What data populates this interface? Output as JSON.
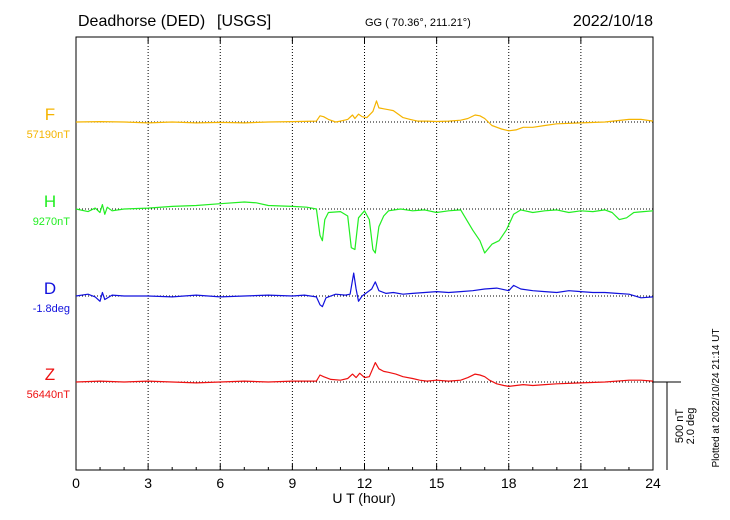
{
  "header": {
    "station": "Deadhorse (DED)",
    "network": "[USGS]",
    "coords": "GG ( 70.36°, 211.21°)",
    "date": "2022/10/18"
  },
  "footer": {
    "plotted": "Plotted at 2022/10/24 21:14 UT"
  },
  "chart_data": {
    "type": "line",
    "xlabel": "U T (hour)",
    "xlim": [
      0,
      24
    ],
    "xticks": [
      "0",
      "3",
      "6",
      "9",
      "12",
      "15",
      "18",
      "21",
      "24"
    ],
    "grid": true,
    "scale_bar": {
      "value": "500 nT",
      "deg": "2.0 deg"
    },
    "panels": [
      {
        "name": "F",
        "baseline": "57190nT",
        "color": "#f5b400",
        "points": [
          [
            0,
            0
          ],
          [
            1,
            2
          ],
          [
            2,
            0
          ],
          [
            3,
            -5
          ],
          [
            4,
            0
          ],
          [
            5,
            -5
          ],
          [
            6,
            -2
          ],
          [
            7,
            -5
          ],
          [
            8,
            0
          ],
          [
            9,
            2
          ],
          [
            10,
            5
          ],
          [
            10.15,
            35
          ],
          [
            10.3,
            30
          ],
          [
            10.5,
            15
          ],
          [
            10.8,
            0
          ],
          [
            11,
            5
          ],
          [
            11.3,
            15
          ],
          [
            11.5,
            40
          ],
          [
            11.6,
            20
          ],
          [
            11.75,
            45
          ],
          [
            11.9,
            30
          ],
          [
            12.1,
            25
          ],
          [
            12.35,
            60
          ],
          [
            12.5,
            120
          ],
          [
            12.6,
            80
          ],
          [
            12.8,
            75
          ],
          [
            13.0,
            70
          ],
          [
            13.2,
            65
          ],
          [
            13.4,
            45
          ],
          [
            13.6,
            25
          ],
          [
            13.9,
            15
          ],
          [
            14.2,
            5
          ],
          [
            14.6,
            5
          ],
          [
            15,
            3
          ],
          [
            15.5,
            5
          ],
          [
            16.0,
            10
          ],
          [
            16.3,
            20
          ],
          [
            16.6,
            40
          ],
          [
            16.8,
            35
          ],
          [
            17.0,
            20
          ],
          [
            17.3,
            -20
          ],
          [
            17.7,
            -40
          ],
          [
            18.0,
            -50
          ],
          [
            18.3,
            -45
          ],
          [
            18.6,
            -30
          ],
          [
            19,
            -30
          ],
          [
            19.5,
            -20
          ],
          [
            20,
            -10
          ],
          [
            21,
            -5
          ],
          [
            22,
            0
          ],
          [
            23,
            15
          ],
          [
            23.5,
            15
          ],
          [
            24,
            5
          ]
        ]
      },
      {
        "name": "H",
        "baseline": "9270nT",
        "color": "#22ee22",
        "points": [
          [
            0,
            0
          ],
          [
            0.5,
            -15
          ],
          [
            0.8,
            5
          ],
          [
            1.0,
            -20
          ],
          [
            1.1,
            25
          ],
          [
            1.2,
            -30
          ],
          [
            1.3,
            10
          ],
          [
            1.5,
            -10
          ],
          [
            2,
            0
          ],
          [
            3,
            5
          ],
          [
            4,
            15
          ],
          [
            5,
            20
          ],
          [
            6,
            30
          ],
          [
            7,
            40
          ],
          [
            7.5,
            35
          ],
          [
            8,
            20
          ],
          [
            9,
            15
          ],
          [
            9.6,
            10
          ],
          [
            10.0,
            0
          ],
          [
            10.15,
            -150
          ],
          [
            10.25,
            -180
          ],
          [
            10.35,
            -60
          ],
          [
            10.5,
            -20
          ],
          [
            11,
            -15
          ],
          [
            11.3,
            -40
          ],
          [
            11.45,
            -220
          ],
          [
            11.6,
            -230
          ],
          [
            11.75,
            -50
          ],
          [
            12.0,
            -10
          ],
          [
            12.2,
            -60
          ],
          [
            12.35,
            -230
          ],
          [
            12.45,
            -250
          ],
          [
            12.6,
            -100
          ],
          [
            12.8,
            -40
          ],
          [
            13,
            -10
          ],
          [
            13.5,
            0
          ],
          [
            14,
            -10
          ],
          [
            14.5,
            -5
          ],
          [
            15,
            -20
          ],
          [
            15.5,
            -10
          ],
          [
            16,
            -5
          ],
          [
            16.5,
            -120
          ],
          [
            16.8,
            -180
          ],
          [
            17.0,
            -250
          ],
          [
            17.3,
            -200
          ],
          [
            17.6,
            -180
          ],
          [
            17.9,
            -120
          ],
          [
            18.1,
            -60
          ],
          [
            18.2,
            -30
          ],
          [
            18.5,
            -5
          ],
          [
            19,
            -20
          ],
          [
            19.5,
            -10
          ],
          [
            20,
            -5
          ],
          [
            20.5,
            -20
          ],
          [
            21,
            -10
          ],
          [
            21.5,
            -15
          ],
          [
            22,
            -5
          ],
          [
            22.3,
            -20
          ],
          [
            22.6,
            -60
          ],
          [
            22.9,
            -50
          ],
          [
            23.2,
            -20
          ],
          [
            23.6,
            -15
          ],
          [
            24,
            -10
          ]
        ]
      },
      {
        "name": "D",
        "baseline": "-1.8deg",
        "color": "#1111dd",
        "points": [
          [
            0,
            0
          ],
          [
            0.5,
            10
          ],
          [
            0.8,
            -5
          ],
          [
            1.0,
            -30
          ],
          [
            1.1,
            20
          ],
          [
            1.2,
            -20
          ],
          [
            1.5,
            5
          ],
          [
            2,
            0
          ],
          [
            3,
            0
          ],
          [
            4,
            -5
          ],
          [
            5,
            5
          ],
          [
            6,
            -5
          ],
          [
            7,
            0
          ],
          [
            8,
            5
          ],
          [
            9,
            0
          ],
          [
            9.5,
            5
          ],
          [
            10.0,
            -5
          ],
          [
            10.15,
            -50
          ],
          [
            10.25,
            -60
          ],
          [
            10.4,
            -10
          ],
          [
            10.8,
            10
          ],
          [
            11.2,
            5
          ],
          [
            11.4,
            10
          ],
          [
            11.55,
            130
          ],
          [
            11.65,
            40
          ],
          [
            11.75,
            -30
          ],
          [
            11.9,
            0
          ],
          [
            12.1,
            20
          ],
          [
            12.3,
            40
          ],
          [
            12.45,
            80
          ],
          [
            12.6,
            30
          ],
          [
            12.9,
            15
          ],
          [
            13.2,
            20
          ],
          [
            13.6,
            10
          ],
          [
            14,
            15
          ],
          [
            14.5,
            20
          ],
          [
            15,
            25
          ],
          [
            15.5,
            20
          ],
          [
            16,
            25
          ],
          [
            16.5,
            30
          ],
          [
            17,
            40
          ],
          [
            17.5,
            45
          ],
          [
            18,
            30
          ],
          [
            18.2,
            60
          ],
          [
            18.5,
            40
          ],
          [
            19,
            30
          ],
          [
            19.5,
            25
          ],
          [
            20,
            20
          ],
          [
            20.5,
            30
          ],
          [
            21,
            25
          ],
          [
            21.5,
            20
          ],
          [
            22,
            20
          ],
          [
            22.5,
            15
          ],
          [
            23,
            10
          ],
          [
            23.5,
            -10
          ],
          [
            24,
            -5
          ]
        ]
      },
      {
        "name": "Z",
        "baseline": "56440nT",
        "color": "#ee1111",
        "points": [
          [
            0,
            0
          ],
          [
            1,
            5
          ],
          [
            2,
            0
          ],
          [
            3,
            5
          ],
          [
            4,
            0
          ],
          [
            5,
            -5
          ],
          [
            6,
            0
          ],
          [
            7,
            5
          ],
          [
            8,
            0
          ],
          [
            9,
            5
          ],
          [
            10,
            5
          ],
          [
            10.15,
            40
          ],
          [
            10.3,
            30
          ],
          [
            10.6,
            15
          ],
          [
            11,
            10
          ],
          [
            11.3,
            20
          ],
          [
            11.5,
            45
          ],
          [
            11.65,
            25
          ],
          [
            11.8,
            50
          ],
          [
            12.0,
            25
          ],
          [
            12.2,
            30
          ],
          [
            12.45,
            110
          ],
          [
            12.6,
            75
          ],
          [
            12.8,
            60
          ],
          [
            13.0,
            55
          ],
          [
            13.3,
            45
          ],
          [
            13.6,
            30
          ],
          [
            14,
            20
          ],
          [
            14.3,
            10
          ],
          [
            14.6,
            5
          ],
          [
            15,
            10
          ],
          [
            15.5,
            5
          ],
          [
            16,
            10
          ],
          [
            16.3,
            25
          ],
          [
            16.6,
            45
          ],
          [
            16.8,
            40
          ],
          [
            17.0,
            30
          ],
          [
            17.2,
            10
          ],
          [
            17.5,
            -10
          ],
          [
            17.8,
            -20
          ],
          [
            18.0,
            -25
          ],
          [
            18.3,
            -20
          ],
          [
            18.6,
            -15
          ],
          [
            19,
            -20
          ],
          [
            19.5,
            -15
          ],
          [
            20,
            -10
          ],
          [
            21,
            -5
          ],
          [
            22,
            0
          ],
          [
            23,
            10
          ],
          [
            23.5,
            10
          ],
          [
            24,
            5
          ]
        ]
      }
    ]
  }
}
